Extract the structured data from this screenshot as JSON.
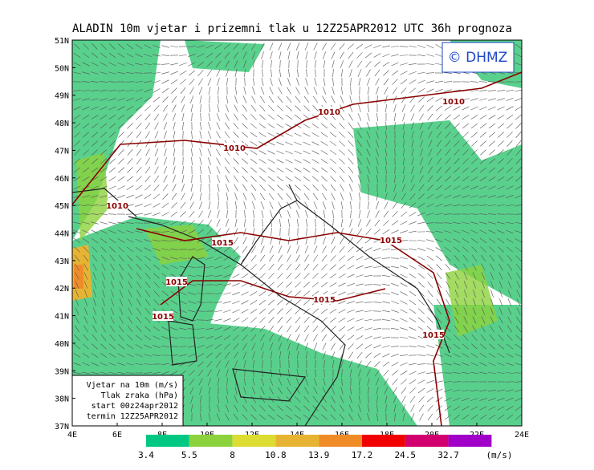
{
  "title": "ALADIN 10m vjetar i prizemni tlak u 12Z25APR2012 UTC 36h prognoza",
  "copyright": "© DHMZ",
  "lat_labels": [
    "51N",
    "50N",
    "49N",
    "48N",
    "47N",
    "46N",
    "45N",
    "44N",
    "43N",
    "42N",
    "41N",
    "40N",
    "39N",
    "38N",
    "37N"
  ],
  "lon_labels": [
    "4E",
    "6E",
    "8E",
    "10E",
    "12E",
    "14E",
    "16E",
    "18E",
    "20E",
    "22E",
    "24E"
  ],
  "isobar_labels": [
    "1010",
    "1010",
    "1010",
    "1010",
    "1015",
    "1015",
    "1015",
    "1015",
    "1015",
    "1015"
  ],
  "info_box": [
    "Vjetar na 10m (m/s)",
    "Tlak zraka (hPa)",
    "start 00z24apr2012",
    "termin 12Z25APR2012"
  ],
  "colorbar": {
    "bins": [
      "3.4",
      "5.5",
      "8",
      "10.8",
      "13.9",
      "17.2",
      "24.5",
      "32.7"
    ],
    "colors": [
      "#00c882",
      "#8cd23c",
      "#dcdc32",
      "#e6b432",
      "#f08c28",
      "#f00000",
      "#d2006e",
      "#a000c8"
    ],
    "unit": "(m/s)"
  }
}
